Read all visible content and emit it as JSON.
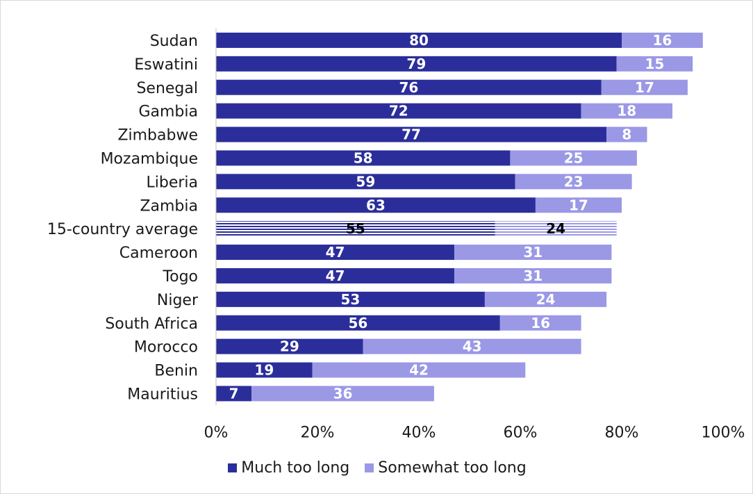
{
  "chart_data": {
    "type": "bar",
    "orientation": "horizontal",
    "stacked": true,
    "categories": [
      "Sudan",
      "Eswatini",
      "Senegal",
      "Gambia",
      "Zimbabwe",
      "Mozambique",
      "Liberia",
      "Zambia",
      "15-country average",
      "Cameroon",
      "Togo",
      "Niger",
      "South Africa",
      "Morocco",
      "Benin",
      "Mauritius"
    ],
    "series": [
      {
        "name": "Much too long",
        "color": "#2b2e9a",
        "values": [
          80,
          79,
          76,
          72,
          77,
          58,
          59,
          63,
          55,
          47,
          47,
          53,
          56,
          29,
          19,
          7
        ]
      },
      {
        "name": "Somewhat too long",
        "color": "#9b98e6",
        "values": [
          16,
          15,
          17,
          18,
          8,
          25,
          23,
          17,
          24,
          31,
          31,
          24,
          16,
          43,
          42,
          36
        ]
      }
    ],
    "value_suffix": "%",
    "highlight_category": "15-country average",
    "xlim": [
      0,
      100
    ],
    "xticks": [
      0,
      20,
      40,
      60,
      80,
      100
    ],
    "xtick_labels": [
      "0%",
      "20%",
      "40%",
      "60%",
      "80%",
      "100%"
    ],
    "grid": false,
    "legend": "bottom",
    "title": "",
    "xlabel": "",
    "ylabel": ""
  },
  "legend": {
    "items": [
      {
        "label": "Much too long",
        "color": "#2b2e9a"
      },
      {
        "label": "Somewhat too long",
        "color": "#9b98e6"
      }
    ]
  }
}
